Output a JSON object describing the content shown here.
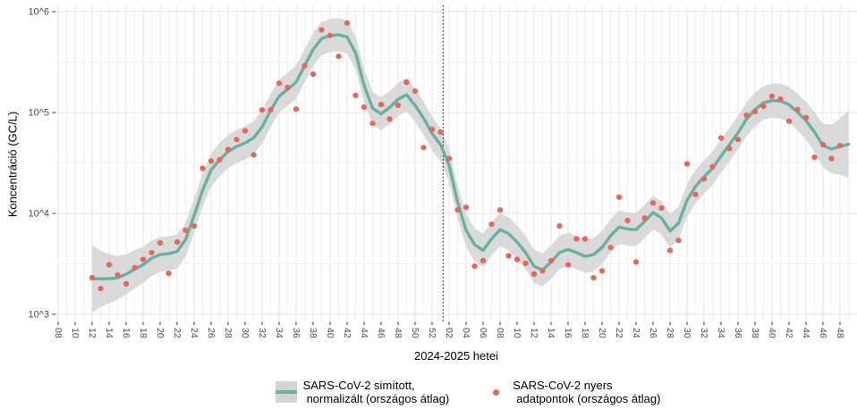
{
  "figure": {
    "ylabel": "Koncentráció (GC/L)",
    "xlabel": "2024-2025 hetei"
  },
  "legend": {
    "smoothed": {
      "line1": "SARS-CoV-2 simított,",
      "line2": "normalizált (országos átlag)"
    },
    "raw": {
      "line1": "SARS-CoV-2 nyers",
      "line2": "adatpontok (országos átlag)"
    }
  },
  "chart_data": {
    "type": "line",
    "subtype": "smoothed line with confidence ribbon + raw scatter points",
    "title": "",
    "xlabel": "2024-2025 hetei",
    "ylabel": "Koncentráció (GC/L)",
    "y_scale": "log10",
    "ylim_log10": [
      2.93,
      6.06
    ],
    "y_axis_ticks": [
      "10^3",
      "10^4",
      "10^5",
      "10^6"
    ],
    "y_tick_values": [
      1000,
      10000,
      100000,
      1000000
    ],
    "y_minor_values": [
      3162,
      31623,
      316228
    ],
    "x_tick_start_week": "2024-W08",
    "x_tick_step_weeks": 2,
    "x_axis_ticks": [
      "08",
      "10",
      "12",
      "14",
      "16",
      "18",
      "20",
      "22",
      "24",
      "26",
      "28",
      "30",
      "32",
      "34",
      "36",
      "38",
      "40",
      "42",
      "44",
      "46",
      "48",
      "50",
      "52",
      "02",
      "04",
      "06",
      "08",
      "10",
      "12",
      "14",
      "16",
      "18",
      "20",
      "22",
      "24",
      "26",
      "28",
      "30",
      "32",
      "34",
      "36",
      "38",
      "40",
      "42",
      "44",
      "46",
      "48"
    ],
    "grid": true,
    "legend_position": "bottom",
    "year_divider_week_idx": 45.3,
    "weeks_start": "2024-W12",
    "weeks_end_smoothed": "2025-W49",
    "weeks_end_raw": "2025-W48",
    "data_start_week_idx": 4,
    "series": [
      {
        "name": "SARS-CoV-2 simított, normalizált (országos átlag)",
        "role": "smoothed",
        "values": [
          2250,
          2250,
          2250,
          2300,
          2500,
          2800,
          3100,
          3600,
          3900,
          4000,
          4200,
          5500,
          9500,
          17000,
          27000,
          34000,
          41000,
          46000,
          50000,
          56000,
          72000,
          105000,
          145000,
          170000,
          200000,
          290000,
          420000,
          540000,
          580000,
          590000,
          560000,
          390000,
          185000,
          110000,
          97000,
          112000,
          135000,
          150000,
          118000,
          88000,
          62000,
          48000,
          30000,
          13000,
          6800,
          4900,
          4300,
          5600,
          6900,
          6300,
          5200,
          4100,
          3000,
          2750,
          3300,
          4100,
          4400,
          4100,
          3750,
          3900,
          4600,
          6000,
          7300,
          7000,
          6900,
          8300,
          10200,
          9000,
          6700,
          8000,
          13500,
          18500,
          23000,
          28000,
          37000,
          48000,
          63000,
          86000,
          107000,
          125000,
          131000,
          130000,
          120000,
          101000,
          83000,
          64000,
          47000,
          43500,
          46000,
          48500
        ]
      },
      {
        "name": "SARS-CoV-2 nyers adatpontok (országos átlag)",
        "role": "raw",
        "values": [
          2300,
          1800,
          3100,
          2450,
          2000,
          2900,
          3500,
          4100,
          5100,
          2550,
          5200,
          6800,
          7500,
          28000,
          33000,
          34000,
          43000,
          54000,
          66000,
          38000,
          106000,
          106000,
          195000,
          177000,
          108000,
          290000,
          240000,
          660000,
          580000,
          360000,
          770000,
          148000,
          113000,
          78000,
          120000,
          86000,
          118000,
          200000,
          163000,
          45000,
          68000,
          64000,
          35000,
          10800,
          11500,
          3000,
          3400,
          7800,
          10800,
          3800,
          3500,
          3200,
          2500,
          2700,
          3400,
          7500,
          3100,
          5600,
          5600,
          2300,
          2700,
          4600,
          14500,
          8500,
          3300,
          9000,
          12700,
          11300,
          4300,
          5400,
          31000,
          15400,
          22000,
          29000,
          56000,
          44000,
          54000,
          94000,
          102000,
          115000,
          145000,
          136000,
          82000,
          107000,
          89000,
          36000,
          48000,
          35000,
          47000
        ]
      }
    ],
    "band": {
      "base_log_halfwidth": 0.165,
      "edge_log_boost": 0.17,
      "edge_decay_weeks": 2.5
    },
    "colors": {
      "line": "#66b2a2",
      "point": "#ee6352",
      "band": "#d4d4d4",
      "grid_major": "#e3e3e3",
      "grid_minor": "#f1f1f1",
      "tick_text": "#4d4d4d",
      "tick_mark": "#333333",
      "vline": "#000000"
    }
  }
}
